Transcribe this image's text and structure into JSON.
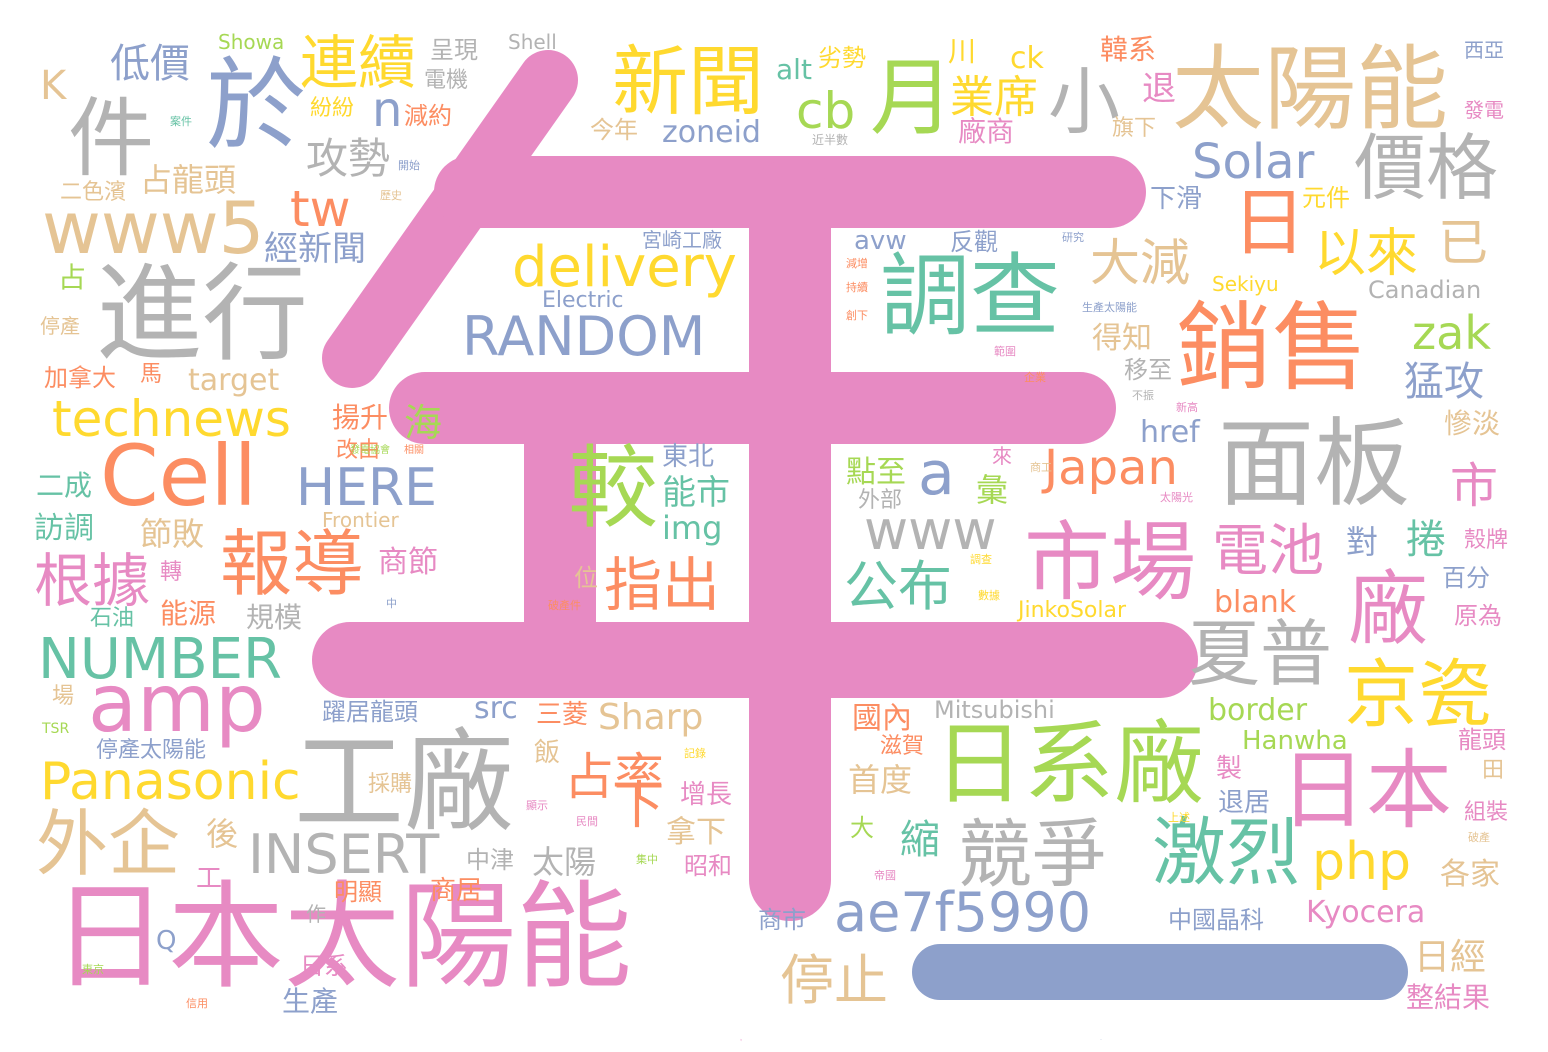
{
  "colors": {
    "pink": "#e78ac3",
    "green": "#a6d854",
    "orange": "#fc8d62",
    "blue": "#8da0cb",
    "teal": "#66c2a5",
    "yellow": "#ffd92f",
    "tan": "#e5c494",
    "gray": "#b3b3b3"
  },
  "words": [
    {
      "t": "年",
      "c": "pink"
    },
    {
      "t": "一",
      "c": "blue"
    },
    {
      "t": "日本太陽能",
      "c": "pink"
    },
    {
      "t": "工廠",
      "c": "gray"
    },
    {
      "t": "日系廠",
      "c": "green"
    },
    {
      "t": "太陽能",
      "c": "tan"
    },
    {
      "t": "進行",
      "c": "gray"
    },
    {
      "t": "於",
      "c": "blue"
    },
    {
      "t": "件",
      "c": "gray"
    },
    {
      "t": "月",
      "c": "green"
    },
    {
      "t": "小",
      "c": "gray"
    },
    {
      "t": "新聞",
      "c": "yellow"
    },
    {
      "t": "連續",
      "c": "yellow"
    },
    {
      "t": "調查",
      "c": "teal"
    },
    {
      "t": "銷售",
      "c": "orange"
    },
    {
      "t": "面板",
      "c": "gray"
    },
    {
      "t": "市場",
      "c": "pink"
    },
    {
      "t": "日本",
      "c": "pink"
    },
    {
      "t": "廠",
      "c": "pink"
    },
    {
      "t": "價格",
      "c": "gray"
    },
    {
      "t": "日",
      "c": "orange"
    },
    {
      "t": "較",
      "c": "green"
    },
    {
      "t": "報導",
      "c": "orange"
    },
    {
      "t": "競爭",
      "c": "gray"
    },
    {
      "t": "激烈",
      "c": "teal"
    },
    {
      "t": "夏普",
      "c": "gray"
    },
    {
      "t": "京瓷",
      "c": "yellow"
    },
    {
      "t": "外企",
      "c": "tan"
    },
    {
      "t": "amp",
      "c": "pink"
    },
    {
      "t": "Cell",
      "c": "orange"
    },
    {
      "t": "www5",
      "c": "tan"
    },
    {
      "t": "RANDOM",
      "c": "blue"
    },
    {
      "t": "delivery",
      "c": "yellow"
    },
    {
      "t": "Panasonic",
      "c": "yellow"
    },
    {
      "t": "technews",
      "c": "yellow"
    },
    {
      "t": "NUMBER",
      "c": "teal"
    },
    {
      "t": "ae7f5990",
      "c": "blue"
    },
    {
      "t": "INSERT",
      "c": "gray"
    },
    {
      "t": "HERE",
      "c": "blue"
    },
    {
      "t": "Solar",
      "c": "blue"
    },
    {
      "t": "Japan",
      "c": "orange"
    },
    {
      "t": "www",
      "c": "gray"
    },
    {
      "t": "php",
      "c": "yellow"
    },
    {
      "t": "zak",
      "c": "green"
    },
    {
      "t": "cb",
      "c": "green"
    },
    {
      "t": "tw",
      "c": "orange"
    },
    {
      "t": "n",
      "c": "blue"
    },
    {
      "t": "a",
      "c": "blue"
    },
    {
      "t": "根據",
      "c": "pink"
    },
    {
      "t": "指出",
      "c": "orange"
    },
    {
      "t": "公布",
      "c": "teal"
    },
    {
      "t": "占率",
      "c": "orange"
    },
    {
      "t": "電池",
      "c": "pink"
    },
    {
      "t": "停止",
      "c": "tan"
    },
    {
      "t": "大減",
      "c": "tan"
    },
    {
      "t": "以來",
      "c": "yellow"
    },
    {
      "t": "已",
      "c": "tan"
    },
    {
      "t": "業席",
      "c": "yellow"
    },
    {
      "t": "攻勢",
      "c": "gray"
    },
    {
      "t": "低價",
      "c": "blue"
    },
    {
      "t": "占龍頭",
      "c": "tan"
    },
    {
      "t": "經新聞",
      "c": "blue"
    },
    {
      "t": "市",
      "c": "pink"
    },
    {
      "t": "下",
      "c": "orange"
    },
    {
      "t": "能市",
      "c": "teal"
    },
    {
      "t": "img",
      "c": "teal"
    },
    {
      "t": "東北",
      "c": "blue"
    },
    {
      "t": "zoneid",
      "c": "blue"
    },
    {
      "t": "alt",
      "c": "teal"
    },
    {
      "t": "劣勢",
      "c": "yellow"
    },
    {
      "t": "今年",
      "c": "tan"
    },
    {
      "t": "Electric",
      "c": "blue"
    },
    {
      "t": "avw",
      "c": "blue"
    },
    {
      "t": "反觀",
      "c": "blue"
    },
    {
      "t": "宮崎工廠",
      "c": "blue"
    },
    {
      "t": "Sharp",
      "c": "tan"
    },
    {
      "t": "src",
      "c": "blue"
    },
    {
      "t": "三菱",
      "c": "orange"
    },
    {
      "t": "Mitsubishi",
      "c": "gray"
    },
    {
      "t": "國內",
      "c": "orange"
    },
    {
      "t": "border",
      "c": "green"
    },
    {
      "t": "Hanwha",
      "c": "green"
    },
    {
      "t": "Kyocera",
      "c": "pink"
    },
    {
      "t": "blank",
      "c": "orange"
    },
    {
      "t": "JinkoSolar",
      "c": "yellow"
    },
    {
      "t": "Frontier",
      "c": "tan"
    },
    {
      "t": "Canadian",
      "c": "gray"
    },
    {
      "t": "Sekiyu",
      "c": "yellow"
    },
    {
      "t": "href",
      "c": "blue"
    },
    {
      "t": "target",
      "c": "tan"
    },
    {
      "t": "Showa",
      "c": "green"
    },
    {
      "t": "Shell",
      "c": "gray"
    },
    {
      "t": "K",
      "c": "tan"
    },
    {
      "t": "Q",
      "c": "blue"
    },
    {
      "t": "TSR",
      "c": "green"
    },
    {
      "t": "ck",
      "c": "yellow"
    },
    {
      "t": "揚升",
      "c": "orange"
    },
    {
      "t": "改由",
      "c": "orange"
    },
    {
      "t": "海",
      "c": "green"
    },
    {
      "t": "點至",
      "c": "green"
    },
    {
      "t": "外部",
      "c": "gray"
    },
    {
      "t": "彙",
      "c": "green"
    },
    {
      "t": "來",
      "c": "pink"
    },
    {
      "t": "節敗",
      "c": "tan"
    },
    {
      "t": "商節",
      "c": "pink"
    },
    {
      "t": "能源",
      "c": "orange"
    },
    {
      "t": "規模",
      "c": "gray"
    },
    {
      "t": "位",
      "c": "tan"
    },
    {
      "t": "增長",
      "c": "pink"
    },
    {
      "t": "拿下",
      "c": "tan"
    },
    {
      "t": "昭和",
      "c": "pink"
    },
    {
      "t": "太陽",
      "c": "gray"
    },
    {
      "t": "中津",
      "c": "gray"
    },
    {
      "t": "縮",
      "c": "teal"
    },
    {
      "t": "首度",
      "c": "tan"
    },
    {
      "t": "滋賀",
      "c": "orange"
    },
    {
      "t": "大",
      "c": "green"
    },
    {
      "t": "商市",
      "c": "blue"
    },
    {
      "t": "飯",
      "c": "tan"
    },
    {
      "t": "採購",
      "c": "tan"
    },
    {
      "t": "躍居龍頭",
      "c": "blue"
    },
    {
      "t": "停產太陽能",
      "c": "blue"
    },
    {
      "t": "明顯",
      "c": "orange"
    },
    {
      "t": "商居",
      "c": "orange"
    },
    {
      "t": "作",
      "c": "gray"
    },
    {
      "t": "日系",
      "c": "pink"
    },
    {
      "t": "生產",
      "c": "blue"
    },
    {
      "t": "工",
      "c": "pink"
    },
    {
      "t": "後",
      "c": "tan"
    },
    {
      "t": "訪調",
      "c": "teal"
    },
    {
      "t": "二成",
      "c": "teal"
    },
    {
      "t": "加拿大",
      "c": "orange"
    },
    {
      "t": "馬",
      "c": "orange"
    },
    {
      "t": "停產",
      "c": "tan"
    },
    {
      "t": "占",
      "c": "green"
    },
    {
      "t": "二色濱",
      "c": "tan"
    },
    {
      "t": "轉",
      "c": "pink"
    },
    {
      "t": "石油",
      "c": "teal"
    },
    {
      "t": "場",
      "c": "tan"
    },
    {
      "t": "呈現",
      "c": "gray"
    },
    {
      "t": "電機",
      "c": "gray"
    },
    {
      "t": "紛紛",
      "c": "yellow"
    },
    {
      "t": "減約",
      "c": "orange"
    },
    {
      "t": "川",
      "c": "yellow"
    },
    {
      "t": "退",
      "c": "pink"
    },
    {
      "t": "廠商",
      "c": "pink"
    },
    {
      "t": "韓系",
      "c": "orange"
    },
    {
      "t": "旗下",
      "c": "tan"
    },
    {
      "t": "下滑",
      "c": "blue"
    },
    {
      "t": "元件",
      "c": "yellow"
    },
    {
      "t": "得知",
      "c": "tan"
    },
    {
      "t": "移至",
      "c": "gray"
    },
    {
      "t": "猛攻",
      "c": "blue"
    },
    {
      "t": "慘淡",
      "c": "tan"
    },
    {
      "t": "對",
      "c": "blue"
    },
    {
      "t": "捲",
      "c": "teal"
    },
    {
      "t": "百分",
      "c": "blue"
    },
    {
      "t": "原為",
      "c": "pink"
    },
    {
      "t": "殼牌",
      "c": "pink"
    },
    {
      "t": "日經",
      "c": "tan"
    },
    {
      "t": "整結果",
      "c": "pink"
    },
    {
      "t": "各家",
      "c": "tan"
    },
    {
      "t": "組裝",
      "c": "pink"
    },
    {
      "t": "龍頭",
      "c": "pink"
    },
    {
      "t": "田",
      "c": "tan"
    },
    {
      "t": "製",
      "c": "pink"
    },
    {
      "t": "退居",
      "c": "blue"
    },
    {
      "t": "中國晶科",
      "c": "blue"
    },
    {
      "t": "西亞",
      "c": "blue"
    },
    {
      "t": "發電",
      "c": "pink"
    },
    {
      "t": "案件",
      "c": "teal"
    },
    {
      "t": "開始",
      "c": "blue"
    },
    {
      "t": "歷史",
      "c": "tan"
    },
    {
      "t": "近半數",
      "c": "gray"
    },
    {
      "t": "研究",
      "c": "blue"
    },
    {
      "t": "減增",
      "c": "orange"
    },
    {
      "t": "持續",
      "c": "orange"
    },
    {
      "t": "創下",
      "c": "orange"
    },
    {
      "t": "範圍",
      "c": "pink"
    },
    {
      "t": "生產太陽能",
      "c": "blue"
    },
    {
      "t": "企業",
      "c": "orange"
    },
    {
      "t": "不振",
      "c": "gray"
    },
    {
      "t": "新高",
      "c": "pink"
    },
    {
      "t": "發電協會",
      "c": "green"
    },
    {
      "t": "相關",
      "c": "orange"
    },
    {
      "t": "中",
      "c": "blue"
    },
    {
      "t": "破產件",
      "c": "orange"
    },
    {
      "t": "數據",
      "c": "yellow"
    },
    {
      "t": "調查",
      "c": "yellow"
    },
    {
      "t": "商工",
      "c": "tan"
    },
    {
      "t": "太陽光",
      "c": "pink"
    },
    {
      "t": "記錄",
      "c": "yellow"
    },
    {
      "t": "顯示",
      "c": "pink"
    },
    {
      "t": "民間",
      "c": "pink"
    },
    {
      "t": "集中",
      "c": "green"
    },
    {
      "t": "帝國",
      "c": "pink"
    },
    {
      "t": "上述",
      "c": "yellow"
    },
    {
      "t": "破產",
      "c": "tan"
    },
    {
      "t": "東京",
      "c": "green"
    },
    {
      "t": "信用",
      "c": "orange"
    }
  ]
}
